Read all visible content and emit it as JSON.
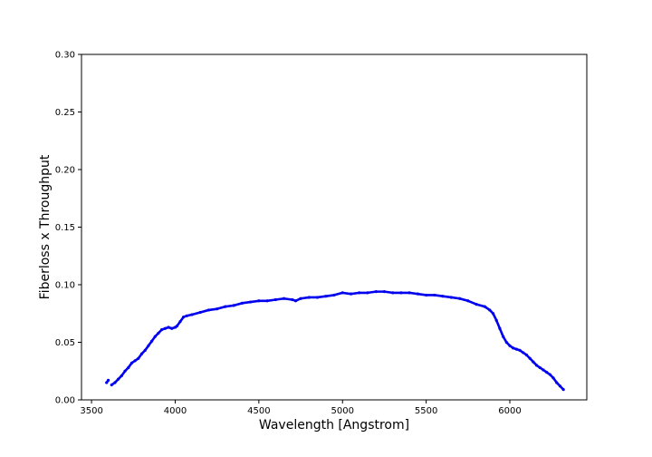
{
  "chart_data": {
    "type": "scatter",
    "title": "",
    "xlabel": "Wavelength [Angstrom]",
    "ylabel": "Fiberloss x Throughput",
    "xlim": [
      3440,
      6460
    ],
    "ylim": [
      0.0,
      0.3
    ],
    "xticks": [
      3500,
      4000,
      4500,
      5000,
      5500,
      6000
    ],
    "yticks": [
      0.0,
      0.05,
      0.1,
      0.15,
      0.2,
      0.25,
      0.3
    ],
    "xtick_labels": [
      "3500",
      "4000",
      "4500",
      "5000",
      "5500",
      "6000"
    ],
    "ytick_labels": [
      "0.00",
      "0.05",
      "0.10",
      "0.15",
      "0.20",
      "0.25",
      "0.30"
    ],
    "grid": false,
    "legend": "none",
    "series": [
      {
        "color": "#0000ee",
        "marker": "dot",
        "x": [
          3590,
          3600,
          3620,
          3640,
          3660,
          3680,
          3700,
          3720,
          3740,
          3760,
          3780,
          3800,
          3820,
          3840,
          3860,
          3880,
          3900,
          3920,
          3940,
          3960,
          3980,
          4000,
          4010,
          4030,
          4050,
          4070,
          4100,
          4150,
          4200,
          4250,
          4300,
          4350,
          4400,
          4450,
          4500,
          4550,
          4600,
          4650,
          4700,
          4720,
          4750,
          4800,
          4850,
          4900,
          4950,
          5000,
          5050,
          5100,
          5150,
          5200,
          5250,
          5300,
          5350,
          5400,
          5450,
          5500,
          5550,
          5600,
          5650,
          5700,
          5750,
          5800,
          5850,
          5880,
          5900,
          5920,
          5940,
          5960,
          5980,
          6000,
          6020,
          6040,
          6060,
          6080,
          6100,
          6120,
          6140,
          6160,
          6180,
          6200,
          6220,
          6240,
          6260,
          6280,
          6300,
          6320
        ],
        "y": [
          0.015,
          0.017,
          0.013,
          0.015,
          0.018,
          0.021,
          0.025,
          0.028,
          0.032,
          0.034,
          0.036,
          0.04,
          0.043,
          0.047,
          0.051,
          0.055,
          0.058,
          0.061,
          0.062,
          0.063,
          0.062,
          0.063,
          0.064,
          0.068,
          0.072,
          0.073,
          0.074,
          0.076,
          0.078,
          0.079,
          0.081,
          0.082,
          0.084,
          0.085,
          0.086,
          0.086,
          0.087,
          0.088,
          0.087,
          0.086,
          0.088,
          0.089,
          0.089,
          0.09,
          0.091,
          0.093,
          0.092,
          0.093,
          0.093,
          0.094,
          0.094,
          0.093,
          0.093,
          0.093,
          0.092,
          0.091,
          0.091,
          0.09,
          0.089,
          0.088,
          0.086,
          0.083,
          0.081,
          0.078,
          0.075,
          0.069,
          0.062,
          0.055,
          0.05,
          0.047,
          0.045,
          0.044,
          0.043,
          0.041,
          0.039,
          0.036,
          0.033,
          0.03,
          0.028,
          0.026,
          0.024,
          0.022,
          0.019,
          0.015,
          0.012,
          0.009
        ]
      }
    ]
  }
}
